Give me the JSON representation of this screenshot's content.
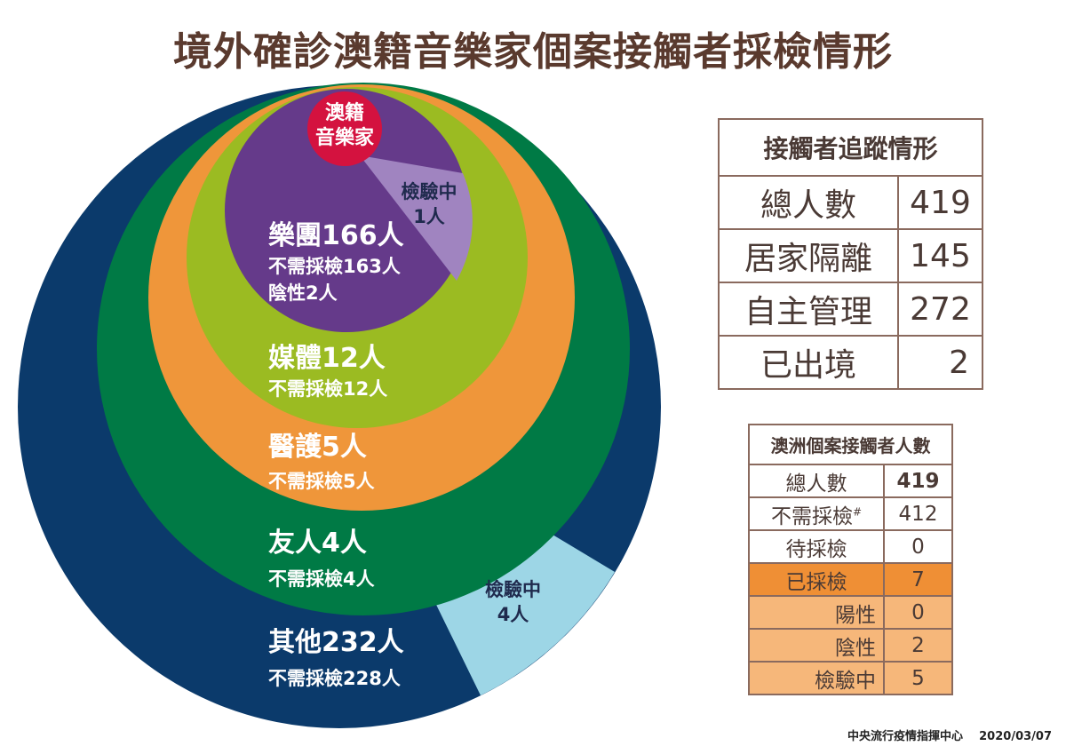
{
  "title": "境外確診澳籍音樂家個案接觸者採檢情形",
  "center": {
    "line1": "澳籍",
    "line2": "音樂家"
  },
  "rings": [
    {
      "name": "樂團166人",
      "lines": [
        "不需採檢163人",
        "陰性2人"
      ],
      "testing": {
        "line1": "檢驗中",
        "line2": "1人"
      },
      "color": "#653a8a"
    },
    {
      "name": "媒體12人",
      "lines": [
        "不需採檢12人"
      ],
      "color": "#9bbb22"
    },
    {
      "name": "醫護5人",
      "lines": [
        "不需採檢5人"
      ],
      "color": "#ef963a"
    },
    {
      "name": "友人4人",
      "lines": [
        "不需採檢4人"
      ],
      "color": "#007a45"
    },
    {
      "name": "其他232人",
      "lines": [
        "不需採檢228人"
      ],
      "testing": {
        "line1": "檢驗中",
        "line2": "4人"
      },
      "color": "#0b3a6b"
    }
  ],
  "colors": {
    "center": "#d4123f",
    "testing_inner": "#a084c0",
    "testing_outer": "#9dd6e6"
  },
  "tracking": {
    "header": "接觸者追蹤情形",
    "rows": [
      {
        "label": "總人數",
        "value": "419"
      },
      {
        "label": "居家隔離",
        "value": "145"
      },
      {
        "label": "自主管理",
        "value": "272"
      },
      {
        "label": "已出境",
        "value": "2"
      }
    ]
  },
  "australia": {
    "header": "澳洲個案接觸者人數",
    "rows": [
      {
        "label": "總人數",
        "value": "419"
      },
      {
        "label": "不需採檢",
        "sup": "#",
        "value": "412"
      },
      {
        "label": "待採檢",
        "value": "0"
      },
      {
        "label": "已採檢",
        "value": "7"
      },
      {
        "label": "陽性",
        "value": "0"
      },
      {
        "label": "陰性",
        "value": "2"
      },
      {
        "label": "檢驗中",
        "value": "5"
      }
    ]
  },
  "footer": {
    "source": "中央流行疫情指揮中心",
    "date": "2020/03/07"
  }
}
